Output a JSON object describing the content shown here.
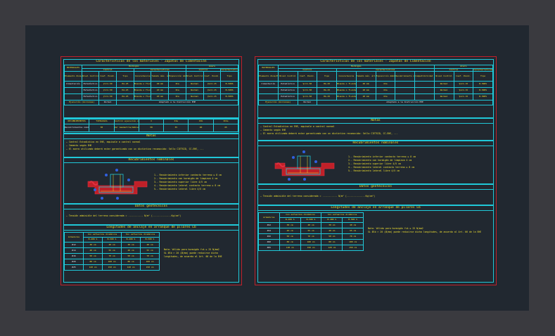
{
  "left": {
    "title": "Características de los materiales - Zapatas de Cimentación",
    "row_label": "MATERIALES",
    "group_hormigon": "Hormigón",
    "group_acero": "Acero",
    "col_control": "Control",
    "col_caracteristicas": "Características",
    "col_control_b": "Control",
    "col_caracteristicas_b": "Características",
    "headers": [
      "Elemento Zona/Planta",
      "Nivel Control",
      "Coef. Pondc.",
      "Tipo",
      "Consistencia",
      "Tamaño máx. árido",
      "Exposición Ambiente",
      "Nivel Control",
      "Coef. Pondc.",
      "Tipo"
    ],
    "rows": [
      [
        "Cimentación",
        "Estadístico",
        "γc=1.50",
        "HA-25",
        "Blanda o fluida",
        "40 mm",
        "IIa",
        "Normal",
        "γs=1.15",
        "B-500S"
      ],
      [
        "",
        "Estadístico",
        "γc=1.50",
        "HA-25",
        "Blanda o fluida",
        "20 mm",
        "IIa",
        "Normal",
        "γs=1.15",
        "B-500S"
      ],
      [
        "",
        "Estadístico",
        "γc=1.50",
        "HA-25",
        "Blanda o fluida",
        "20 mm",
        "IIa",
        "Normal",
        "γs=1.15",
        "B-500S"
      ]
    ],
    "ejecucion_label": "Ejecución (Acciones)",
    "ejecucion_value": "Normal",
    "ejecucion_note": "Adaptado a la Instrucción EHE",
    "recub_head": [
      "RECUBRIMIENTOS",
      "TIPOLOGÍA",
      "Control ejecución o inscripción de tipología",
      "I",
      "IIa",
      "IIb",
      "IIIa"
    ],
    "recub_row": [
      "Recubrimientos nominales (mm)",
      "30",
      "Ver Geometría/Ambiente",
      "30",
      "35",
      "40",
      "45"
    ],
    "notes_title": "Notas",
    "notes": [
      "— Control Estadístico en EHE, equivale a control normal",
      "— Cemento según EHE",
      "— El acero utilizado deberá estar garantizado con un distintivo reconocido: Sello CIETSID, CC-EHE, ..."
    ],
    "recub_title": "Recubrimientos nominales",
    "recub_legend": [
      "1.- Recubrimiento inferior contacto terreno ≥ 8 cm",
      "2.- Recubrimiento con hormigón de limpieza 4 cm",
      "3.- Recubrimiento superior libre 4/5 cm",
      "4.- Recubrimiento lateral contacto terreno ≥ 8 cm",
      "5.- Recubrimiento lateral libre 4/5 cm"
    ],
    "geo_title": "Datos geotécnicos",
    "geo_text": "— Tensión admisible del terreno considerada = ........... N/m² (..............Kp/cm²)",
    "anch_title": "Longitudes de anclaje en arranque de pilares Lb",
    "anch_head1": [
      "Armaduras",
      "Con esfuerzos dinámicos",
      "",
      "Sin esfuerzos dinámicos",
      ""
    ],
    "anch_head2": [
      "",
      "B-400 S",
      "B-500 S",
      "B-400 S",
      "B-500 S"
    ],
    "anch_rows": [
      [
        "Ø12",
        "30 cm",
        "40 cm",
        "30 cm",
        "40 cm"
      ],
      [
        "Ø14",
        "40 cm",
        "55 cm",
        "40 cm",
        "55 cm"
      ],
      [
        "Ø16",
        "50 cm",
        "70 cm",
        "50 cm",
        "70 cm"
      ],
      [
        "Ø20",
        "80 cm",
        "100 cm",
        "80 cm",
        "100 cm"
      ],
      [
        "Ø25",
        "120 cm",
        "150 cm",
        "120 cm",
        "150 cm"
      ]
    ],
    "anch_note": [
      "Nota: Válido para hormigón fck ≥ 25 N/mm2",
      "Si Ølb > 20 (Ø/mm) puede reducirse dicha",
      "longitudes, de acuerdo al Art. 66 de la EHE"
    ]
  },
  "right": {
    "title": "Características de los materiales - Zapatas de Cimentación",
    "row_label": "MATERIALES",
    "group_hormigon": "Hormigón",
    "group_acero": "Acero",
    "col_control": "Control",
    "col_caracteristicas": "Características",
    "col_control_b": "Control",
    "headers": [
      "Elemento Zona/Planta",
      "Nivel Control",
      "Coef. Pondc.",
      "Tipo",
      "Consistencia",
      "Tamaño máx. árido",
      "Exposición Ambiente",
      "Recubrimiento nominal",
      "Compatibilidad nominal según el terreno",
      "Nivel Control",
      "Coef. Pondc.",
      "Tipo"
    ],
    "rows": [
      [
        "Cimentación",
        "Estadístico",
        "γc=1.50",
        "HA-25",
        "Blanda o fluida",
        "40 mm",
        "IIa",
        "",
        "",
        "Normal",
        "γs=1.15",
        "B-500S"
      ],
      [
        "",
        "Estadístico",
        "γc=1.50",
        "HA-25",
        "Blanda o fluida",
        "20 mm",
        "IIa",
        "",
        "",
        "Normal",
        "γs=1.15",
        "B-500S"
      ],
      [
        "",
        "Estadístico",
        "γc=1.50",
        "HA-25",
        "Blanda o fluida",
        "20 mm",
        "IIa",
        "",
        "",
        "Normal",
        "γs=1.15",
        "B-500S"
      ]
    ],
    "ejecucion_label": "Ejecución (Acciones)",
    "ejecucion_value": "Normal",
    "ejecucion_note": "Adaptado a la Instrucción EHE",
    "notes_title": "Notas",
    "notes": [
      "— Control Estadístico en EHE, equivale a control normal",
      "— Cemento según EHE",
      "— El acero utilizado deberá estar garantizado con un distintivo reconocido: Sello CIETSID, CC-EHE, ..."
    ],
    "recub_title": "Recubrimientos nominales",
    "recub_legend": [
      "1.- Recubrimiento inferior contacto terreno ≥ 8 cm",
      "2.- Recubrimiento con hormigón de limpieza 4 cm",
      "3.- Recubrimiento superior libre 4/5 cm",
      "4.- Recubrimiento lateral contacto terreno ≥ 8 cm",
      "5.- Recubrimiento lateral libre 4/5 cm"
    ],
    "geo_title": "Datos geotécnicos",
    "geo_text": "— Tensión admisible del terreno considerada = ........... N/m² (..............Kp/cm²)",
    "anch_title": "Longitudes de anclaje en arranque de pilares Lb",
    "anch_head1": [
      "Armaduras",
      "Con esfuerzos dinámicos",
      "",
      "Sin esfuerzos dinámicos",
      ""
    ],
    "anch_head2": [
      "",
      "B-400 S",
      "B-500 S",
      "B-400 S",
      "B-500 S"
    ],
    "anch_rows": [
      [
        "Ø12",
        "30 cm",
        "40 cm",
        "30 cm",
        "40 cm"
      ],
      [
        "Ø14",
        "40 cm",
        "55 cm",
        "40 cm",
        "55 cm"
      ],
      [
        "Ø16",
        "50 cm",
        "70 cm",
        "50 cm",
        "70 cm"
      ],
      [
        "Ø20",
        "80 cm",
        "100 cm",
        "80 cm",
        "100 cm"
      ],
      [
        "Ø25",
        "120 cm",
        "150 cm",
        "120 cm",
        "150 cm"
      ]
    ],
    "anch_note": [
      "Nota: Válido para hormigón fck ≥ 25 N/mm2",
      "Si Ølb > 20 (Ø/mm) puede reducirse dicha longitudes, de acuerdo al Art. 66 de la EHE"
    ]
  },
  "colors": {
    "background": "#3a3a3f",
    "canvas": "#212830",
    "border_red": "#c0202a",
    "border_cyan": "#20c8d8",
    "text_yellow": "#f0e030"
  }
}
